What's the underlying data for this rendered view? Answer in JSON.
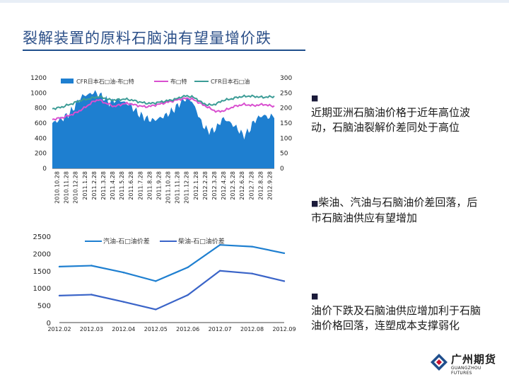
{
  "title": "裂解装置的原料石脑油有望量增价跌",
  "bullets": [
    {
      "marker": "■",
      "text": "近期亚洲石脑油价格于近年高位波动，石脑油裂解价差同处于高位"
    },
    {
      "marker": "■",
      "text": "柴油、汽油与石脑油价差回落，后市石脑油供应有望增加"
    },
    {
      "marker": "■",
      "text": "油价下跌及石脑油供应增加利于石脑油价格回落，连塑成本支撑弱化"
    }
  ],
  "logo": {
    "name": "广州期货",
    "sub": "GUANGZHOU FUTURES"
  },
  "colors": {
    "area": "#1e7fd0",
    "brent": "#d94fd0",
    "naphtha": "#3c9c96",
    "gasoline": "#1e7fd0",
    "diesel": "#3a64c8"
  },
  "chart_data": [
    {
      "type": "area",
      "title": "",
      "legend": [
        "CFR日本石□油-布□特",
        "布□特",
        "CFR日本石□油"
      ],
      "x_tick_labels": [
        "2010.10.28",
        "2010.11.28",
        "2010.12.28",
        "2011.1.28",
        "2011.2.28",
        "2011.3.28",
        "2011.4.28",
        "2011.5.28",
        "2011.6.28",
        "2011.7.28",
        "2011.8.28",
        "2011.9.28",
        "2011.10.28",
        "2011.11.28",
        "2011.12.28",
        "2012.1.28",
        "2012.2.28",
        "2012.3.28",
        "2012.4.28",
        "2012.5.28",
        "2012.6.28",
        "2012.7.28",
        "2012.8.28",
        "2012.9.28"
      ],
      "y_left_ticks": [
        "0",
        "200",
        "400",
        "600",
        "800",
        "1000",
        "1200"
      ],
      "y_right_ticks": [
        "0",
        "50",
        "100",
        "150",
        "200",
        "250",
        "300"
      ],
      "ylim_left": [
        0,
        1200
      ],
      "ylim_right": [
        0,
        300
      ],
      "series": [
        {
          "name": "CFR日本石□油-布□特",
          "axis": "right",
          "type": "area",
          "values": [
            150,
            158,
            165,
            178,
            196,
            224,
            242,
            244,
            252,
            246,
            234,
            217,
            225,
            226,
            218,
            212,
            193,
            177,
            168,
            160,
            161,
            168,
            176,
            188,
            202,
            222,
            232,
            224,
            188,
            147,
            126,
            124,
            138,
            166,
            157,
            144,
            130,
            108,
            122,
            154,
            170,
            176,
            168,
            178
          ]
        },
        {
          "name": "布□特",
          "axis": "right",
          "type": "line",
          "values": [
            162,
            165,
            168,
            174,
            180,
            188,
            198,
            210,
            222,
            228,
            218,
            212,
            205,
            210,
            215,
            214,
            210,
            207,
            204,
            206,
            210,
            214,
            218,
            222,
            226,
            230,
            232,
            230,
            222,
            212,
            204,
            194,
            188,
            190,
            196,
            204,
            208,
            212,
            210,
            208,
            210,
            212,
            208,
            206
          ]
        },
        {
          "name": "CFR日本石□油",
          "axis": "left",
          "type": "line",
          "values": [
            790,
            800,
            815,
            840,
            860,
            890,
            910,
            920,
            938,
            950,
            935,
            910,
            905,
            912,
            918,
            910,
            895,
            878,
            865,
            860,
            868,
            880,
            892,
            905,
            920,
            948,
            960,
            950,
            918,
            868,
            842,
            840,
            862,
            900,
            912,
            926,
            944,
            952,
            958,
            954,
            946,
            942,
            948,
            952
          ]
        }
      ]
    },
    {
      "type": "line",
      "title": "",
      "categories": [
        "2012.02",
        "2012.03",
        "2012.04",
        "2012.05",
        "2012.06",
        "2012.07",
        "2012.08",
        "2012.09"
      ],
      "ylim": [
        0,
        2500
      ],
      "y_ticks": [
        "0",
        "500",
        "1000",
        "1500",
        "2000",
        "2500"
      ],
      "series": [
        {
          "name": "汽油-石□油价差",
          "values": [
            1620,
            1650,
            1450,
            1200,
            1600,
            2250,
            2200,
            2010
          ]
        },
        {
          "name": "柴油-石□油价差",
          "values": [
            780,
            810,
            600,
            380,
            800,
            1500,
            1420,
            1200
          ]
        }
      ]
    }
  ]
}
